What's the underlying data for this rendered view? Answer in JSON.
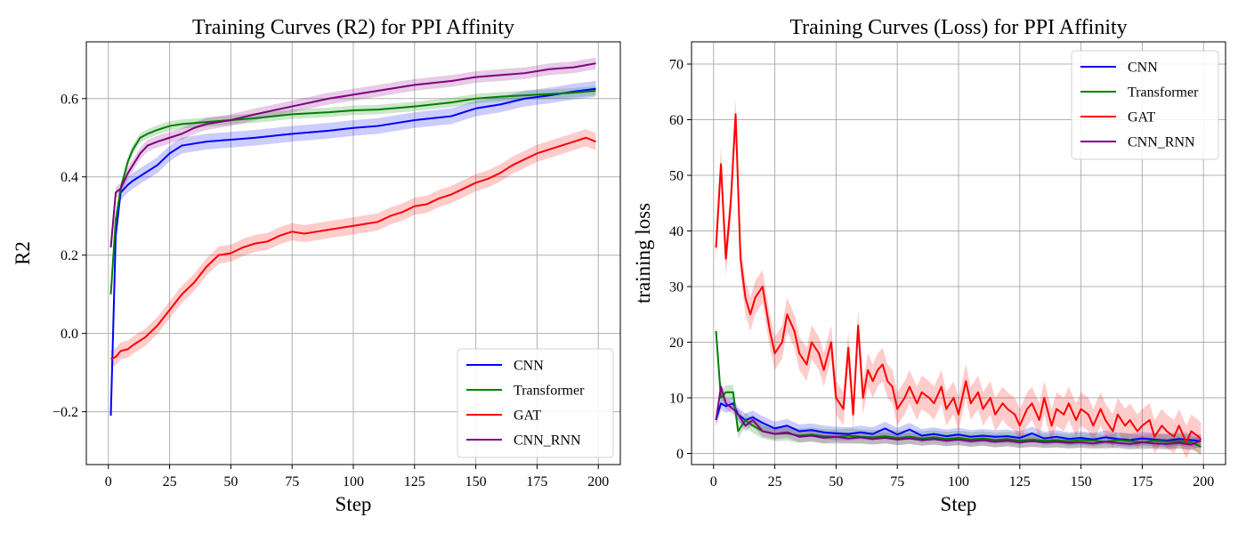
{
  "colors": {
    "CNN": "#0000ff",
    "Transformer": "#008000",
    "GAT": "#ff0000",
    "CNN_RNN": "#800080"
  },
  "chart_data": [
    {
      "type": "line",
      "title": "Training Curves (R2) for PPI Affinity",
      "xlabel": "Step",
      "ylabel": "R2",
      "xlim": [
        -9,
        209
      ],
      "ylim": [
        -0.335,
        0.745
      ],
      "xticks": [
        0,
        25,
        50,
        75,
        100,
        125,
        150,
        175,
        200
      ],
      "yticks": [
        -0.2,
        0.0,
        0.2,
        0.4,
        0.6
      ],
      "yticks_labels": [
        "−0.2",
        "0.0",
        "0.2",
        "0.4",
        "0.6"
      ],
      "grid": true,
      "legend_position": "lower-right",
      "series": [
        {
          "name": "CNN",
          "x": [
            1,
            3,
            5,
            8,
            10,
            15,
            20,
            25,
            30,
            40,
            50,
            60,
            75,
            90,
            100,
            110,
            125,
            140,
            150,
            160,
            170,
            180,
            190,
            199
          ],
          "y": [
            -0.21,
            0.25,
            0.36,
            0.38,
            0.39,
            0.41,
            0.43,
            0.46,
            0.48,
            0.49,
            0.495,
            0.5,
            0.51,
            0.518,
            0.525,
            0.53,
            0.545,
            0.555,
            0.575,
            0.585,
            0.6,
            0.608,
            0.618,
            0.625
          ],
          "band": 0.02
        },
        {
          "name": "Transformer",
          "x": [
            1,
            3,
            5,
            8,
            10,
            13,
            16,
            20,
            25,
            30,
            40,
            50,
            60,
            75,
            90,
            100,
            110,
            125,
            140,
            150,
            160,
            175,
            190,
            199
          ],
          "y": [
            0.1,
            0.29,
            0.37,
            0.44,
            0.47,
            0.5,
            0.51,
            0.52,
            0.53,
            0.535,
            0.54,
            0.545,
            0.55,
            0.56,
            0.565,
            0.57,
            0.572,
            0.58,
            0.59,
            0.6,
            0.605,
            0.61,
            0.615,
            0.62
          ],
          "band": 0.012
        },
        {
          "name": "GAT",
          "x": [
            1,
            3,
            5,
            8,
            10,
            15,
            20,
            25,
            30,
            35,
            40,
            45,
            50,
            55,
            60,
            65,
            70,
            75,
            80,
            85,
            90,
            95,
            100,
            105,
            110,
            115,
            120,
            125,
            130,
            135,
            140,
            145,
            150,
            155,
            160,
            165,
            170,
            175,
            180,
            185,
            190,
            195,
            199
          ],
          "y": [
            -0.065,
            -0.06,
            -0.045,
            -0.04,
            -0.03,
            -0.01,
            0.02,
            0.06,
            0.1,
            0.13,
            0.17,
            0.2,
            0.205,
            0.22,
            0.23,
            0.235,
            0.25,
            0.26,
            0.255,
            0.26,
            0.265,
            0.27,
            0.275,
            0.28,
            0.285,
            0.3,
            0.31,
            0.325,
            0.33,
            0.345,
            0.355,
            0.37,
            0.385,
            0.395,
            0.41,
            0.43,
            0.445,
            0.46,
            0.47,
            0.48,
            0.49,
            0.5,
            0.49
          ],
          "band": 0.022
        },
        {
          "name": "CNN_RNN",
          "x": [
            1,
            3,
            5,
            8,
            10,
            13,
            16,
            20,
            25,
            30,
            35,
            40,
            50,
            60,
            75,
            90,
            100,
            110,
            125,
            140,
            150,
            160,
            170,
            180,
            190,
            199
          ],
          "y": [
            0.22,
            0.36,
            0.37,
            0.41,
            0.43,
            0.46,
            0.48,
            0.49,
            0.5,
            0.51,
            0.525,
            0.535,
            0.545,
            0.56,
            0.58,
            0.6,
            0.61,
            0.62,
            0.635,
            0.645,
            0.655,
            0.66,
            0.665,
            0.675,
            0.68,
            0.69
          ],
          "band": 0.015
        }
      ]
    },
    {
      "type": "line",
      "title": "Training Curves (Loss) for PPI Affinity",
      "xlabel": "Step",
      "ylabel": "training loss",
      "xlim": [
        -9,
        209
      ],
      "ylim": [
        -2,
        74
      ],
      "xticks": [
        0,
        25,
        50,
        75,
        100,
        125,
        150,
        175,
        200
      ],
      "yticks": [
        0,
        10,
        20,
        30,
        40,
        50,
        60,
        70
      ],
      "yticks_labels": [
        "0",
        "10",
        "20",
        "30",
        "40",
        "50",
        "60",
        "70"
      ],
      "grid": true,
      "legend_position": "upper-right",
      "series": [
        {
          "name": "CNN",
          "x": [
            1,
            3,
            5,
            8,
            10,
            13,
            16,
            20,
            25,
            30,
            35,
            40,
            45,
            50,
            55,
            60,
            65,
            70,
            75,
            80,
            85,
            90,
            95,
            100,
            105,
            110,
            115,
            120,
            125,
            130,
            135,
            140,
            145,
            150,
            155,
            160,
            165,
            170,
            175,
            180,
            185,
            190,
            195,
            199
          ],
          "y": [
            6,
            9,
            8.5,
            9,
            7,
            6,
            6.5,
            5.5,
            4.5,
            5,
            4,
            4.2,
            3.8,
            3.6,
            3.5,
            3.8,
            3.5,
            4.5,
            3.4,
            4.3,
            3.2,
            3.5,
            3.1,
            3.4,
            3,
            3.2,
            3,
            3.1,
            2.8,
            3.6,
            2.7,
            3,
            2.6,
            2.8,
            2.5,
            2.9,
            2.6,
            2.4,
            2.7,
            2.5,
            2.3,
            2.6,
            2.4,
            2.2
          ],
          "band": 1.2
        },
        {
          "name": "Transformer",
          "x": [
            1,
            3,
            5,
            8,
            10,
            13,
            16,
            20,
            25,
            30,
            35,
            40,
            45,
            50,
            55,
            60,
            65,
            70,
            75,
            80,
            85,
            90,
            95,
            100,
            105,
            110,
            115,
            120,
            125,
            130,
            135,
            140,
            145,
            150,
            155,
            160,
            165,
            170,
            175,
            180,
            185,
            190,
            195,
            199
          ],
          "y": [
            22,
            10,
            11,
            11,
            4,
            6,
            5,
            4,
            3.5,
            3.6,
            3.2,
            3.4,
            3.1,
            3,
            3.2,
            3,
            2.9,
            3.1,
            2.8,
            3,
            2.7,
            2.9,
            2.6,
            2.8,
            2.5,
            2.7,
            2.4,
            2.6,
            2.3,
            2.5,
            2.3,
            2.4,
            2.2,
            2.4,
            2.3,
            2.1,
            2.4,
            2.2,
            2,
            2.3,
            2.1,
            2.2,
            2,
            1.2
          ],
          "band": 1.3
        },
        {
          "name": "GAT",
          "x": [
            1,
            3,
            5,
            7,
            9,
            11,
            13,
            15,
            17,
            20,
            23,
            25,
            28,
            30,
            33,
            35,
            38,
            40,
            43,
            45,
            48,
            50,
            53,
            55,
            57,
            59,
            61,
            63,
            65,
            67,
            69,
            71,
            73,
            75,
            78,
            80,
            83,
            85,
            88,
            90,
            93,
            95,
            98,
            100,
            103,
            105,
            108,
            110,
            113,
            115,
            118,
            120,
            123,
            125,
            128,
            130,
            133,
            135,
            138,
            140,
            143,
            145,
            148,
            150,
            153,
            155,
            158,
            160,
            163,
            165,
            168,
            170,
            173,
            175,
            178,
            180,
            183,
            185,
            188,
            190,
            193,
            195,
            198,
            199
          ],
          "y": [
            37,
            52,
            35,
            45,
            61,
            35,
            28,
            25,
            28,
            30,
            22,
            18,
            20,
            25,
            22,
            18,
            16,
            20,
            18,
            15,
            20,
            10,
            8,
            19,
            7,
            23,
            10,
            15,
            13,
            15,
            16,
            13,
            12,
            8,
            10,
            12,
            9,
            11,
            10,
            9,
            12,
            8,
            10,
            7,
            13,
            9,
            11,
            8,
            10,
            7,
            9,
            8,
            7,
            5,
            8,
            9,
            6,
            10,
            5,
            8,
            7,
            9,
            6,
            8,
            7,
            5,
            8,
            6,
            4,
            7,
            5,
            6,
            4,
            5,
            6,
            3,
            5,
            4,
            3,
            5,
            2,
            4,
            3,
            2.5
          ],
          "band": 3
        },
        {
          "name": "CNN_RNN",
          "x": [
            1,
            3,
            5,
            8,
            10,
            13,
            16,
            20,
            25,
            30,
            35,
            40,
            45,
            50,
            55,
            60,
            65,
            70,
            75,
            80,
            85,
            90,
            95,
            100,
            105,
            110,
            115,
            120,
            125,
            130,
            135,
            140,
            145,
            150,
            155,
            160,
            165,
            170,
            175,
            180,
            185,
            190,
            195,
            199
          ],
          "y": [
            6,
            12,
            9,
            8,
            7,
            5,
            6,
            4,
            3.5,
            3.8,
            3,
            3.2,
            2.8,
            3,
            2.7,
            2.9,
            2.6,
            2.8,
            2.5,
            2.7,
            2.4,
            2.6,
            2.3,
            2.5,
            2.2,
            2.4,
            2.1,
            2.3,
            2,
            2.2,
            2,
            2.1,
            1.9,
            2,
            1.8,
            2.1,
            1.9,
            1.7,
            2,
            1.8,
            1.7,
            1.9,
            1.6,
            2.3
          ],
          "band": 1
        }
      ]
    }
  ]
}
